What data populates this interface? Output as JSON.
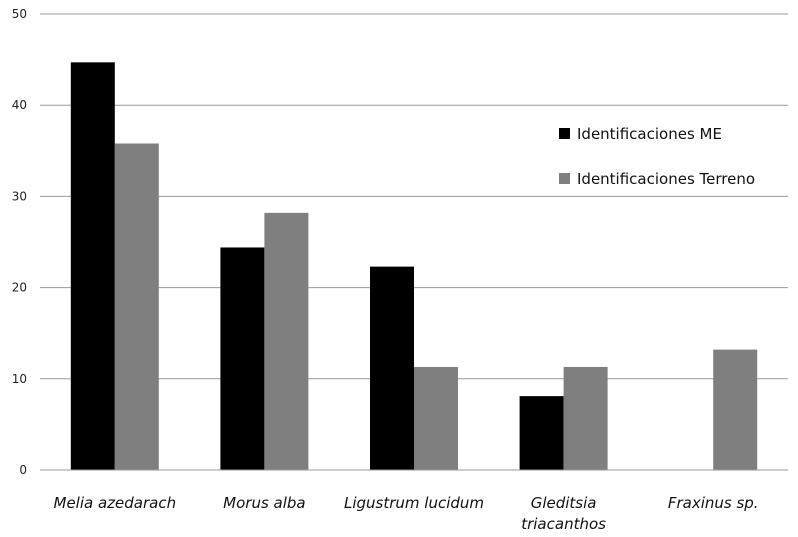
{
  "chart_data": {
    "type": "bar",
    "categories": [
      [
        "Melia azedarach"
      ],
      [
        "Morus alba"
      ],
      [
        "Ligustrum lucidum"
      ],
      [
        "Gleditsia",
        "triacanthos"
      ],
      [
        "Fraxinus sp."
      ]
    ],
    "series": [
      {
        "name": "Identificaciones ME",
        "color": "#000000",
        "values": [
          44.7,
          24.4,
          22.3,
          8.1,
          0
        ]
      },
      {
        "name": "Identificaciones Terreno",
        "color": "#7f7f7f",
        "values": [
          35.8,
          28.2,
          11.3,
          11.3,
          13.2
        ]
      }
    ],
    "ylim": [
      0,
      50
    ],
    "yticks": [
      0,
      10,
      20,
      30,
      40,
      50
    ],
    "grid": true,
    "legend_position": "right"
  }
}
